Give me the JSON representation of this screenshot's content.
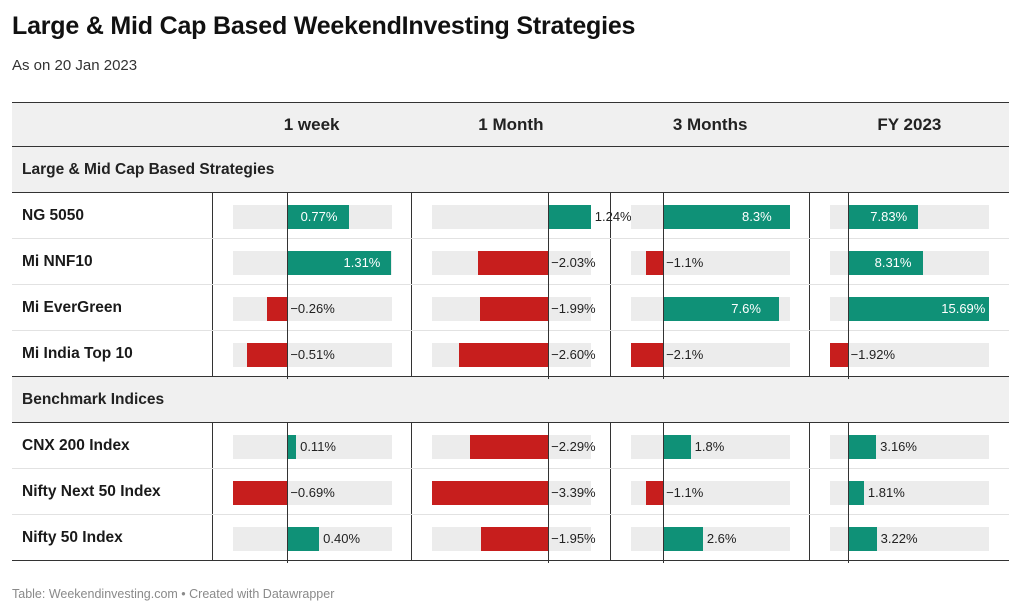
{
  "title": "Large & Mid Cap Based WeekendInvesting Strategies",
  "subtitle": "As on 20 Jan 2023",
  "footer": "Table: Weekendinvesting.com • Created with Datawrapper",
  "colors": {
    "positive": "#0f9177",
    "negative": "#c71e1d",
    "track": "#ececec"
  },
  "chart_data": {
    "type": "table",
    "columns": [
      "",
      "1 week",
      "1 Month",
      "3 Months",
      "FY 2023"
    ],
    "column_ranges": [
      [
        -0.69,
        1.31
      ],
      [
        -3.39,
        1.24
      ],
      [
        -2.1,
        8.3
      ],
      [
        -1.92,
        15.69
      ]
    ],
    "groups": [
      {
        "name": "Large & Mid Cap Based Strategies",
        "rows": [
          {
            "name": "NG 5050",
            "values": [
              0.77,
              1.24,
              8.3,
              7.83
            ],
            "labels": [
              "0.77%",
              "1.24%",
              "8.3%",
              "7.83%"
            ]
          },
          {
            "name": "Mi NNF10",
            "values": [
              1.31,
              -2.03,
              -1.1,
              8.31
            ],
            "labels": [
              "1.31%",
              "−2.03%",
              "−1.1%",
              "8.31%"
            ]
          },
          {
            "name": "Mi EverGreen",
            "values": [
              -0.26,
              -1.99,
              7.6,
              15.69
            ],
            "labels": [
              "−0.26%",
              "−1.99%",
              "7.6%",
              "15.69%"
            ]
          },
          {
            "name": "Mi India Top 10",
            "values": [
              -0.51,
              -2.6,
              -2.1,
              -1.92
            ],
            "labels": [
              "−0.51%",
              "−2.60%",
              "−2.1%",
              "−1.92%"
            ]
          }
        ]
      },
      {
        "name": "Benchmark Indices",
        "rows": [
          {
            "name": "CNX 200 Index",
            "values": [
              0.11,
              -2.29,
              1.8,
              3.16
            ],
            "labels": [
              "0.11%",
              "−2.29%",
              "1.8%",
              "3.16%"
            ]
          },
          {
            "name": "Nifty Next 50 Index",
            "values": [
              -0.69,
              -3.39,
              -1.1,
              1.81
            ],
            "labels": [
              "−0.69%",
              "−3.39%",
              "−1.1%",
              "1.81%"
            ]
          },
          {
            "name": "Nifty 50 Index",
            "values": [
              0.4,
              -1.95,
              2.6,
              3.22
            ],
            "labels": [
              "0.40%",
              "−1.95%",
              "2.6%",
              "3.22%"
            ]
          }
        ]
      }
    ]
  }
}
